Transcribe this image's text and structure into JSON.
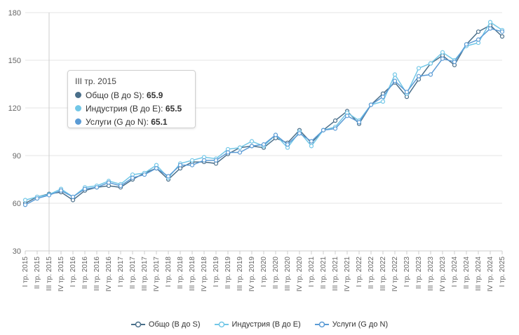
{
  "chart_data": {
    "type": "line",
    "ylim": [
      30,
      180
    ],
    "yticks": [
      30,
      60,
      90,
      120,
      150,
      180
    ],
    "grid": true,
    "legend_position": "bottom",
    "categories": [
      "I тр. 2015",
      "II тр. 2015",
      "III тр. 2015",
      "IV тр. 2015",
      "I тр. 2016",
      "II тр. 2016",
      "III тр. 2016",
      "IV тр. 2016",
      "I тр. 2017",
      "II тр. 2017",
      "III тр. 2017",
      "IV тр. 2017",
      "I тр. 2018",
      "II тр. 2018",
      "III тр. 2018",
      "IV тр. 2018",
      "I тр. 2019",
      "II тр. 2019",
      "III тр. 2019",
      "IV тр. 2019",
      "I тр. 2020",
      "II тр. 2020",
      "III тр. 2020",
      "IV тр. 2020",
      "I тр. 2021",
      "II тр. 2021",
      "III тр. 2021",
      "IV тр. 2021",
      "I тр. 2022",
      "II тр. 2022",
      "III тр. 2022",
      "IV тр. 2022",
      "I тр. 2023",
      "II тр. 2023",
      "III тр. 2023",
      "IV тр. 2023",
      "I тр. 2024",
      "II тр. 2024",
      "III тр. 2024",
      "IV тр. 2024",
      "I тр. 2025"
    ],
    "series": [
      {
        "name": "Общо (B до S)",
        "color": "#4a6f8a",
        "values": [
          60,
          64,
          65.9,
          67,
          62,
          68,
          70,
          71,
          70,
          75,
          79,
          82,
          75,
          82,
          86,
          86,
          85,
          91,
          95,
          96,
          95,
          101,
          98,
          106,
          98,
          106,
          112,
          118,
          110,
          122,
          129,
          136,
          127,
          138,
          148,
          153,
          147,
          160,
          168,
          172,
          165
        ]
      },
      {
        "name": "Индустрия (B до E)",
        "color": "#72c7e7",
        "values": [
          62,
          64,
          65.5,
          69,
          64,
          70,
          71,
          74,
          72,
          78,
          79,
          84,
          76,
          85,
          87,
          89,
          88,
          94,
          95,
          99,
          96,
          103,
          95,
          105,
          96,
          106,
          108,
          117,
          112,
          122,
          124,
          141,
          129,
          145,
          148,
          155,
          150,
          159,
          161,
          174,
          169
        ]
      },
      {
        "name": "Услуги (G до N)",
        "color": "#5b9bd5",
        "values": [
          59,
          63,
          65.1,
          68,
          64,
          69,
          70,
          73,
          71,
          76,
          78,
          82,
          77,
          84,
          84,
          87,
          87,
          92,
          92,
          96,
          97,
          103,
          97,
          104,
          99,
          106,
          107,
          115,
          111,
          122,
          127,
          137,
          130,
          140,
          141,
          151,
          149,
          160,
          163,
          170,
          168
        ]
      }
    ],
    "tooltip": {
      "title": "III тр. 2015",
      "rows": [
        {
          "label": "Общо (B до S)",
          "value": "65.9",
          "color": "#4a6f8a"
        },
        {
          "label": "Индустрия (B до E)",
          "value": "65.5",
          "color": "#72c7e7"
        },
        {
          "label": "Услуги (G до N)",
          "value": "65.1",
          "color": "#5b9bd5"
        }
      ]
    }
  }
}
